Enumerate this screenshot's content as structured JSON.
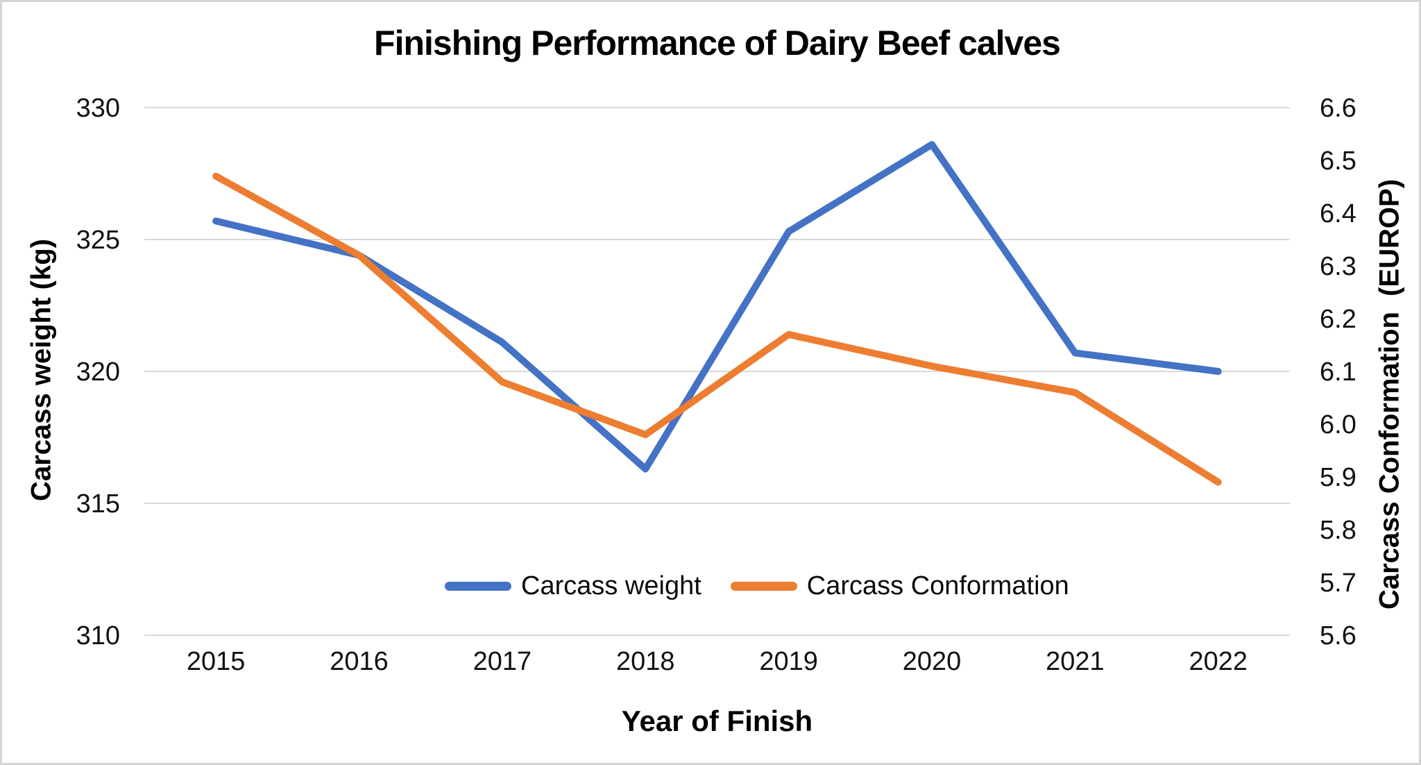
{
  "frame": {
    "background_color": "#ffffff",
    "border_color": "#d4d4d4"
  },
  "chart_data": {
    "type": "line",
    "title": "Finishing Performance of Dairy Beef calves",
    "grid": "horizontal-only",
    "gridline_color": "#d9d9d9",
    "legend_position": "bottom-center-inside",
    "x": {
      "title": "Year of Finish",
      "categories": [
        "2015",
        "2016",
        "2017",
        "2018",
        "2019",
        "2020",
        "2021",
        "2022"
      ]
    },
    "y_left": {
      "title": "Carcass weight (kg)",
      "min": 310,
      "max": 330,
      "tick_labels": [
        "330",
        "325",
        "320",
        "315",
        "310"
      ],
      "tick_values": [
        330,
        325,
        320,
        315,
        310
      ]
    },
    "y_right": {
      "title": "Carcass Conformation  (EUROP)",
      "min": 5.6,
      "max": 6.6,
      "tick_labels": [
        "6.6",
        "6.5",
        "6.4",
        "6.3",
        "6.2",
        "6.1",
        "6.0",
        "5.9",
        "5.8",
        "5.7",
        "5.6"
      ],
      "tick_values": [
        6.6,
        6.5,
        6.4,
        6.3,
        6.2,
        6.1,
        6.0,
        5.9,
        5.8,
        5.7,
        5.6
      ]
    },
    "series": [
      {
        "name": "Carcass weight",
        "axis": "left",
        "color": "#4472C4",
        "values": [
          325.7,
          324.4,
          321.1,
          316.3,
          325.3,
          328.6,
          320.7,
          320.0
        ]
      },
      {
        "name": "Carcass Conformation",
        "axis": "right",
        "color": "#ED7D31",
        "values": [
          6.47,
          6.32,
          6.08,
          5.98,
          6.17,
          6.11,
          6.06,
          5.89
        ]
      }
    ]
  }
}
